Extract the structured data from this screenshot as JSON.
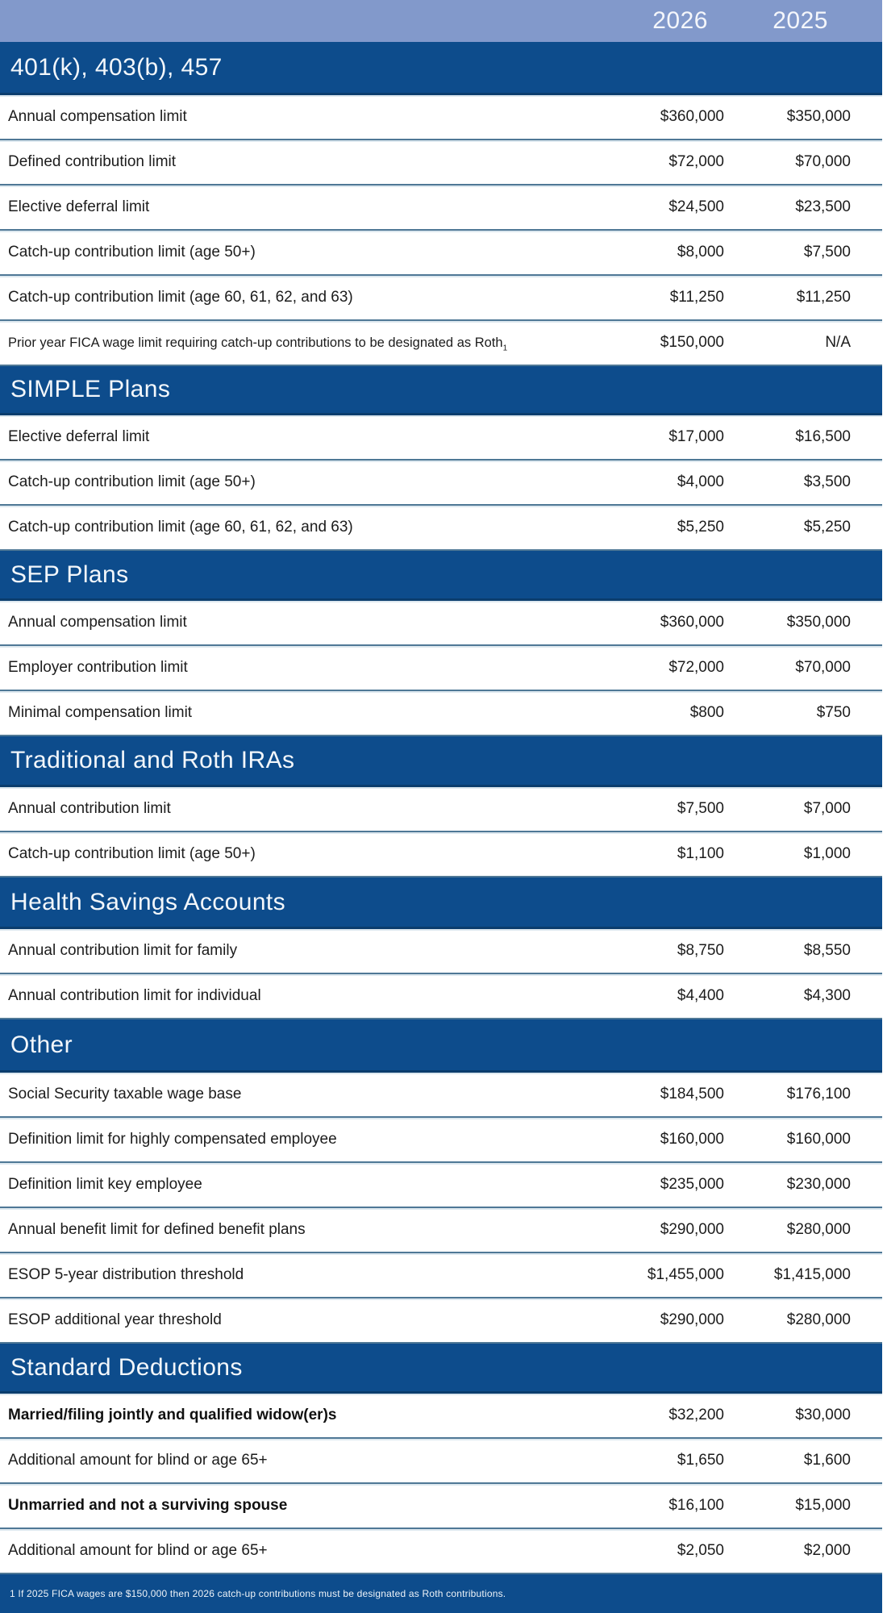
{
  "header": {
    "years": [
      "2026",
      "2025"
    ]
  },
  "colors": {
    "banner_blue": "#8299cb",
    "section_blue": "#0d4c8c",
    "divider_blue": "#4f7896",
    "text_dark": "#1c1c1c",
    "text_light": "#f4f6fb"
  },
  "sections": [
    {
      "title": "401(k), 403(b), 457",
      "rows": [
        {
          "label": "Annual compensation limit",
          "v2026": "$360,000",
          "v2025": "$350,000"
        },
        {
          "label": "Defined contribution limit",
          "v2026": "$72,000",
          "v2025": "$70,000"
        },
        {
          "label": "Elective deferral limit",
          "v2026": "$24,500",
          "v2025": "$23,500"
        },
        {
          "label": "Catch-up contribution limit (age 50+)",
          "v2026": "$8,000",
          "v2025": "$7,500"
        },
        {
          "label": "Catch-up contribution limit (age 60, 61, 62, and 63)",
          "v2026": "$11,250",
          "v2025": "$11,250"
        },
        {
          "label": "Prior year FICA wage limit requiring catch-up contributions to be designated as Roth",
          "footnote_marker": "1",
          "small": true,
          "v2026": "$150,000",
          "v2025": "N/A"
        }
      ]
    },
    {
      "title": "SIMPLE Plans",
      "rows": [
        {
          "label": "Elective deferral limit",
          "v2026": "$17,000",
          "v2025": "$16,500"
        },
        {
          "label": "Catch-up contribution limit (age 50+)",
          "v2026": "$4,000",
          "v2025": "$3,500"
        },
        {
          "label": "Catch-up contribution limit (age 60, 61, 62, and 63)",
          "v2026": "$5,250",
          "v2025": "$5,250"
        }
      ]
    },
    {
      "title": "SEP Plans",
      "rows": [
        {
          "label": "Annual compensation limit",
          "v2026": "$360,000",
          "v2025": "$350,000"
        },
        {
          "label": "Employer contribution limit",
          "v2026": "$72,000",
          "v2025": "$70,000"
        },
        {
          "label": "Minimal compensation limit",
          "v2026": "$800",
          "v2025": "$750"
        }
      ]
    },
    {
      "title": "Traditional and Roth IRAs",
      "rows": [
        {
          "label": "Annual contribution limit",
          "v2026": "$7,500",
          "v2025": "$7,000"
        },
        {
          "label": "Catch-up contribution limit (age 50+)",
          "v2026": "$1,100",
          "v2025": "$1,000"
        }
      ]
    },
    {
      "title": "Health Savings Accounts",
      "rows": [
        {
          "label": "Annual contribution limit for family",
          "v2026": "$8,750",
          "v2025": "$8,550"
        },
        {
          "label": "Annual contribution limit for individual",
          "v2026": "$4,400",
          "v2025": "$4,300"
        }
      ]
    },
    {
      "title": "Other",
      "rows": [
        {
          "label": "Social Security taxable wage base",
          "v2026": "$184,500",
          "v2025": "$176,100"
        },
        {
          "label": "Definition limit for highly compensated employee",
          "v2026": "$160,000",
          "v2025": "$160,000"
        },
        {
          "label": "Definition limit key employee",
          "v2026": "$235,000",
          "v2025": "$230,000"
        },
        {
          "label": "Annual benefit limit for defined benefit plans",
          "v2026": "$290,000",
          "v2025": "$280,000"
        },
        {
          "label": "ESOP 5-year distribution threshold",
          "v2026": "$1,455,000",
          "v2025": "$1,415,000"
        },
        {
          "label": "ESOP additional year threshold",
          "v2026": "$290,000",
          "v2025": "$280,000"
        }
      ]
    },
    {
      "title": "Standard Deductions",
      "rows": [
        {
          "label": "Married/filing jointly and qualified widow(er)s",
          "bold": true,
          "v2026": "$32,200",
          "v2025": "$30,000"
        },
        {
          "label": "Additional amount for blind or age 65+",
          "v2026": "$1,650",
          "v2025": "$1,600"
        },
        {
          "label": "Unmarried and not a surviving spouse",
          "bold": true,
          "v2026": "$16,100",
          "v2025": "$15,000"
        },
        {
          "label": "Additional amount for blind or age 65+",
          "v2026": "$2,050",
          "v2025": "$2,000"
        }
      ]
    }
  ],
  "footer": {
    "note": "1 If 2025 FICA wages are $150,000 then 2026 catch-up contributions must be designated as Roth contributions."
  }
}
